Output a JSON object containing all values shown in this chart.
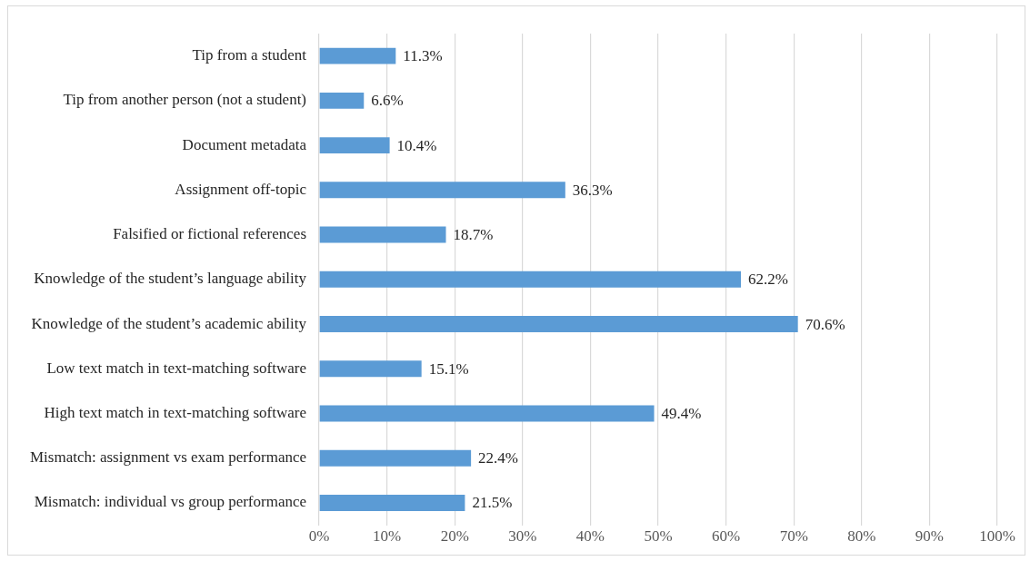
{
  "chart_data": {
    "type": "bar",
    "orientation": "horizontal",
    "categories": [
      "Tip from a student",
      "Tip from another person (not a student)",
      "Document metadata",
      "Assignment off-topic",
      "Falsified or fictional references",
      "Knowledge of the student’s language ability",
      "Knowledge of the student’s academic ability",
      "Low text match in text-matching software",
      "High text match in text-matching software",
      "Mismatch: assignment vs exam performance",
      "Mismatch: individual vs group performance"
    ],
    "values": [
      11.3,
      6.6,
      10.4,
      36.3,
      18.7,
      62.2,
      70.6,
      15.1,
      49.4,
      22.4,
      21.5
    ],
    "value_labels": [
      "11.3%",
      "6.6%",
      "10.4%",
      "36.3%",
      "18.7%",
      "62.2%",
      "70.6%",
      "15.1%",
      "49.4%",
      "22.4%",
      "21.5%"
    ],
    "color": "#5b9bd5",
    "xlim": [
      0,
      100
    ],
    "xticks": [
      {
        "value": 0,
        "label": "0%"
      },
      {
        "value": 10,
        "label": "10%"
      },
      {
        "value": 20,
        "label": "20%"
      },
      {
        "value": 30,
        "label": "30%"
      },
      {
        "value": 40,
        "label": "40%"
      },
      {
        "value": 50,
        "label": "50%"
      },
      {
        "value": 60,
        "label": "60%"
      },
      {
        "value": 70,
        "label": "70%"
      },
      {
        "value": 80,
        "label": "80%"
      },
      {
        "value": 90,
        "label": "90%"
      },
      {
        "value": 100,
        "label": "100%"
      }
    ],
    "grid": "x",
    "legend": false
  }
}
